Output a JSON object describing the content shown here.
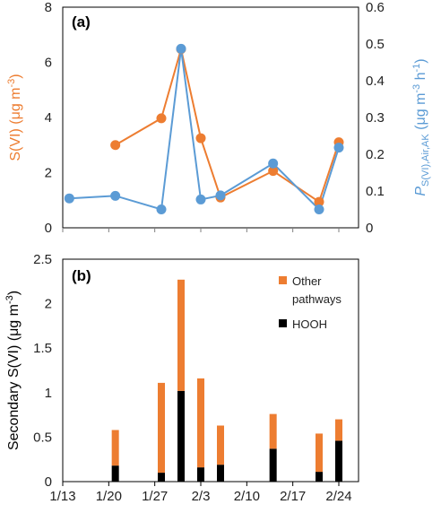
{
  "colors": {
    "orange": "#ED7D31",
    "blue": "#5B9BD5",
    "black": "#000000",
    "frame": "#000000",
    "axis_line": "#7f7f7f"
  },
  "chart_data": [
    {
      "type": "line",
      "panel_label": "(a)",
      "x_unit": "date",
      "ylabel_left": "S(VI) (μg m⁻³)",
      "ylabel_right": "P_S(VI),Air,AK (μg m⁻³ h⁻¹)",
      "ylim_left": [
        0,
        8
      ],
      "ylim_right": [
        0,
        0.6
      ],
      "yticks_left": [
        "0",
        "2",
        "4",
        "6",
        "8"
      ],
      "yticks_right": [
        "0",
        "0.1",
        "0.2",
        "0.3",
        "0.4",
        "0.5",
        "0.6"
      ],
      "series": [
        {
          "axis": "left",
          "color": "#ED7D31",
          "x": [
            "1/21",
            "1/28",
            "1/31",
            "2/3",
            "2/6",
            "2/14",
            "2/21",
            "2/24"
          ],
          "y": [
            3.0,
            3.97,
            6.48,
            3.25,
            1.1,
            2.06,
            0.94,
            3.1
          ]
        },
        {
          "axis": "right",
          "color": "#5B9BD5",
          "x": [
            "1/14",
            "1/21",
            "1/28",
            "1/31",
            "2/3",
            "2/6",
            "2/14",
            "2/21",
            "2/24"
          ],
          "y": [
            0.08,
            0.087,
            0.05,
            0.487,
            0.077,
            0.088,
            0.175,
            0.05,
            0.218
          ]
        }
      ]
    },
    {
      "type": "bar",
      "stacked": true,
      "panel_label": "(b)",
      "ylabel": "Secondary S(VI) (μg m⁻³)",
      "ylim": [
        0,
        2.5
      ],
      "yticks": [
        "0",
        "0.5",
        "1",
        "1.5",
        "2",
        "2.5"
      ],
      "xticks": [
        "1/13",
        "1/20",
        "1/27",
        "2/3",
        "2/10",
        "2/17",
        "2/24"
      ],
      "legend": {
        "position": "top-right",
        "entries": [
          "Other pathways",
          "HOOH"
        ]
      },
      "categories": [
        "1/21",
        "1/28",
        "1/31",
        "2/3",
        "2/6",
        "2/14",
        "2/21",
        "2/24"
      ],
      "series": [
        {
          "name": "HOOH",
          "color": "#000000",
          "values": [
            0.18,
            0.1,
            1.02,
            0.16,
            0.19,
            0.37,
            0.11,
            0.46
          ]
        },
        {
          "name": "Other pathways",
          "color": "#ED7D31",
          "values": [
            0.4,
            1.01,
            1.25,
            1.0,
            0.44,
            0.39,
            0.43,
            0.24
          ]
        }
      ]
    }
  ]
}
